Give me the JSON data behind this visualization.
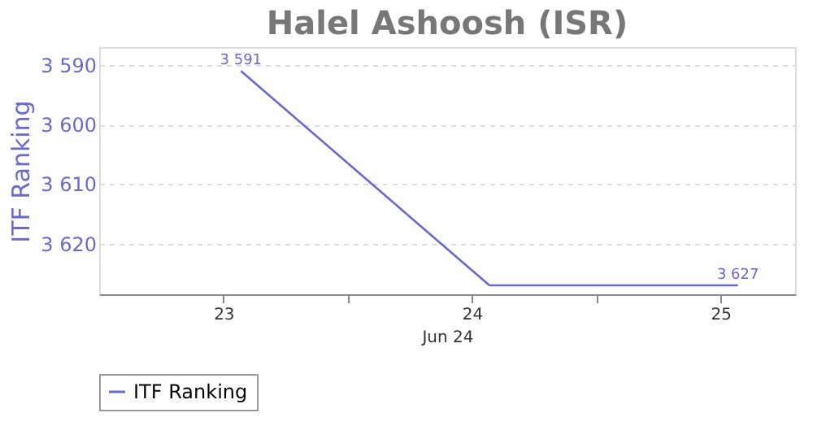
{
  "chart_data": {
    "type": "line",
    "title": "Halel Ashoosh (ISR)",
    "ylabel": "ITF Ranking",
    "xlabel": "Jun 24",
    "x": [
      23.07,
      24.07,
      25.07
    ],
    "series": [
      {
        "name": "ITF Ranking",
        "color": "#6a6acd",
        "values": [
          3591,
          3627,
          3627
        ],
        "value_labels": [
          "3 591",
          null,
          "3 627"
        ]
      }
    ],
    "xlim": [
      22.5,
      25.3
    ],
    "xticks": [
      {
        "value": 23,
        "label": "23"
      },
      {
        "value": 23.5,
        "label": null
      },
      {
        "value": 24,
        "label": "24"
      },
      {
        "value": 24.5,
        "label": null
      },
      {
        "value": 25,
        "label": "25"
      }
    ],
    "ylim": [
      3628.5,
      3587
    ],
    "yticks": [
      {
        "value": 3590,
        "label": "3 590"
      },
      {
        "value": 3600,
        "label": "3 600"
      },
      {
        "value": 3610,
        "label": "3 610"
      },
      {
        "value": 3620,
        "label": "3 620"
      }
    ],
    "grid": "y",
    "legend": "bottom",
    "marker": "none",
    "line_style": "solid"
  }
}
